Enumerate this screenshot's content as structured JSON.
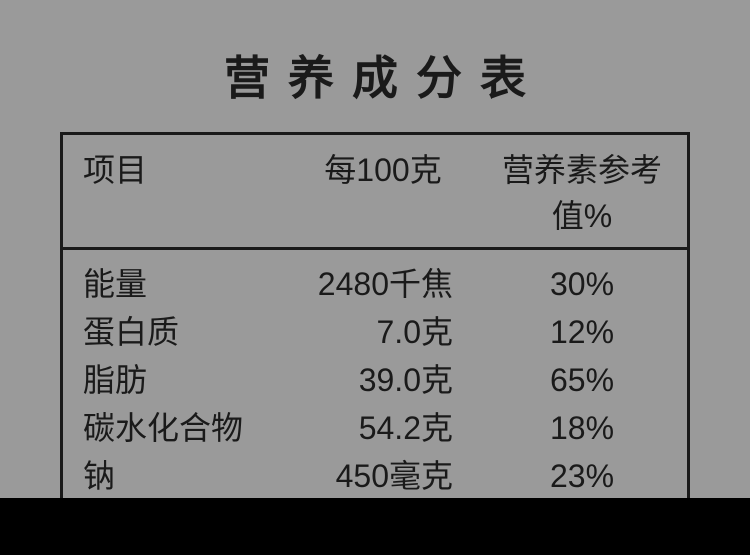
{
  "title": "营养成分表",
  "background_color": "#9a9a9a",
  "text_color": "#1a1a1a",
  "border_color": "#1a1a1a",
  "bottom_bar_color": "#000000",
  "table": {
    "type": "table",
    "columns": [
      {
        "key": "name",
        "header": "项目"
      },
      {
        "key": "value",
        "header": "每100克"
      },
      {
        "key": "nrv",
        "header": "营养素参考值%"
      }
    ],
    "rows": [
      {
        "name": "能量",
        "value": "2480千焦",
        "nrv": "30%"
      },
      {
        "name": "蛋白质",
        "value": "7.0克",
        "nrv": "12%"
      },
      {
        "name": "脂肪",
        "value": "39.0克",
        "nrv": "65%"
      },
      {
        "name": "碳水化合物",
        "value": "54.2克",
        "nrv": "18%"
      },
      {
        "name": "钠",
        "value": "450毫克",
        "nrv": "23%"
      }
    ],
    "title_fontsize": 46,
    "cell_fontsize": 32,
    "border_width": 3
  }
}
